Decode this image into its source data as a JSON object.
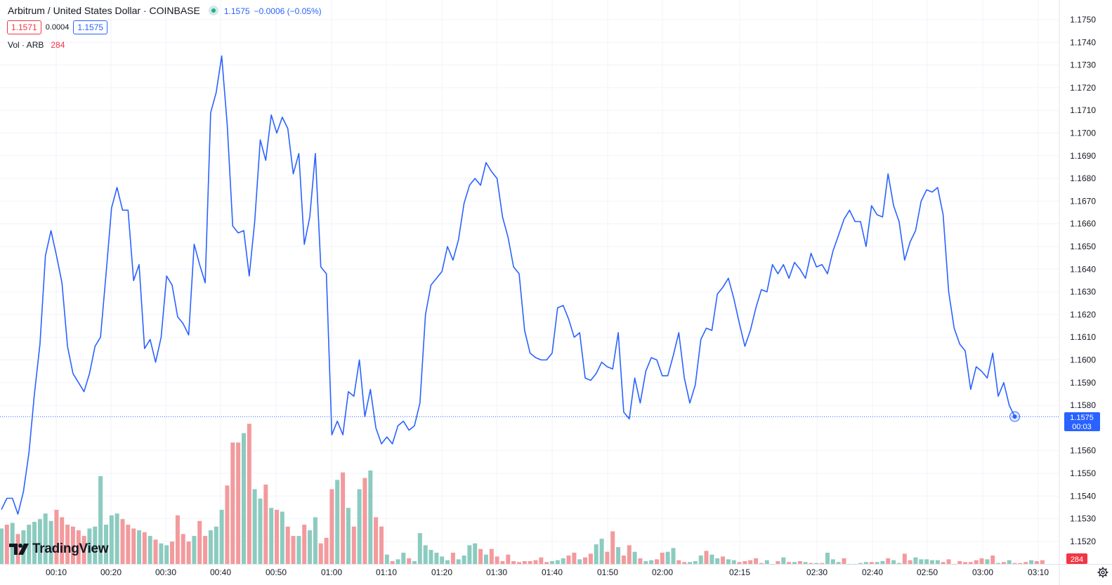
{
  "header": {
    "title": "Arbitrum / United States Dollar · COINBASE",
    "last_price": "1.1575",
    "change": "−0.0006 (−0.05%)",
    "bid": "1.1571",
    "spread": "0.0004",
    "ask": "1.1575"
  },
  "volume_legend": {
    "label": "Vol · ARB",
    "value": "284"
  },
  "brand": {
    "name": "TradingView",
    "icon": "tradingview-logo-icon"
  },
  "price_label": {
    "price": "1.1575",
    "countdown": "00:03"
  },
  "volume_label": "284",
  "colors": {
    "line": "#2962ff",
    "vol_up": "#8ccbbf",
    "vol_down": "#f29a9d",
    "label_blue": "#2962ff",
    "label_red": "#f23645",
    "grid": "#f0f3fa"
  },
  "chart_data": {
    "type": "line",
    "title": "Arbitrum / United States Dollar · COINBASE",
    "xlabel": "",
    "ylabel": "",
    "ylim": [
      1.1515,
      1.1753
    ],
    "grid": true,
    "y_ticks": [
      "1.1750",
      "1.1740",
      "1.1730",
      "1.1720",
      "1.1710",
      "1.1700",
      "1.1690",
      "1.1680",
      "1.1670",
      "1.1660",
      "1.1650",
      "1.1640",
      "1.1630",
      "1.1620",
      "1.1610",
      "1.1600",
      "1.1590",
      "1.1580",
      "1.1560",
      "1.1550",
      "1.1540",
      "1.1530",
      "1.1520"
    ],
    "x_ticks": [
      "00:10",
      "00:20",
      "00:30",
      "00:40",
      "00:50",
      "01:00",
      "01:10",
      "01:20",
      "01:30",
      "01:40",
      "01:50",
      "02:00",
      "02:15",
      "02:30",
      "02:40",
      "02:50",
      "03:00",
      "03:10"
    ],
    "series": [
      {
        "values": [
          1.1534,
          1.1539,
          1.1539,
          1.1532,
          1.1542,
          1.1559,
          1.1585,
          1.1607,
          1.1646,
          1.1657,
          1.1646,
          1.1634,
          1.1606,
          1.1594,
          1.159,
          1.1586,
          1.1594,
          1.1606,
          1.161,
          1.1638,
          1.1667,
          1.1676,
          1.1666,
          1.1666,
          1.1635,
          1.1642,
          1.1605,
          1.1609,
          1.1599,
          1.161,
          1.1637,
          1.1633,
          1.1619,
          1.1616,
          1.1611,
          1.1651,
          1.1642,
          1.1634,
          1.1709,
          1.1718,
          1.1734,
          1.1704,
          1.1659,
          1.1656,
          1.1657,
          1.1637,
          1.1661,
          1.1697,
          1.1688,
          1.1708,
          1.17,
          1.1707,
          1.1702,
          1.1682,
          1.1691,
          1.1651,
          1.1663,
          1.1691,
          1.1641,
          1.1638,
          1.1567,
          1.1573,
          1.1567,
          1.1586,
          1.1584,
          1.16,
          1.1575,
          1.1587,
          1.157,
          1.1563,
          1.1566,
          1.1563,
          1.1571,
          1.1573,
          1.1569,
          1.1571,
          1.1581,
          1.162,
          1.1633,
          1.1636,
          1.1639,
          1.165,
          1.1644,
          1.1653,
          1.1669,
          1.1677,
          1.168,
          1.1677,
          1.1687,
          1.1683,
          1.168,
          1.1663,
          1.1654,
          1.1641,
          1.1638,
          1.1613,
          1.1603,
          1.1601,
          1.16,
          1.16,
          1.1603,
          1.1623,
          1.1624,
          1.1618,
          1.161,
          1.1612,
          1.1592,
          1.1591,
          1.1594,
          1.1599,
          1.1597,
          1.1596,
          1.1612,
          1.1577,
          1.1574,
          1.1592,
          1.1581,
          1.1595,
          1.1601,
          1.16,
          1.1593,
          1.1593,
          1.1602,
          1.1612,
          1.1592,
          1.1581,
          1.1589,
          1.1609,
          1.1614,
          1.1613,
          1.1629,
          1.1632,
          1.1636,
          1.1627,
          1.1616,
          1.1606,
          1.1613,
          1.1623,
          1.1631,
          1.163,
          1.1642,
          1.1638,
          1.1642,
          1.1636,
          1.1643,
          1.164,
          1.1636,
          1.1647,
          1.1641,
          1.1642,
          1.1638,
          1.1648,
          1.1655,
          1.1662,
          1.1666,
          1.1661,
          1.1661,
          1.165,
          1.1668,
          1.1664,
          1.1663,
          1.1682,
          1.1668,
          1.1661,
          1.1644,
          1.1652,
          1.1657,
          1.167,
          1.1675,
          1.1674,
          1.1676,
          1.1664,
          1.163,
          1.1614,
          1.1607,
          1.1604,
          1.1587,
          1.1597,
          1.1595,
          1.1592,
          1.1603,
          1.1584,
          1.159,
          1.158,
          1.1575
        ]
      }
    ],
    "volume": {
      "values": [
        38,
        42,
        44,
        32,
        36,
        42,
        45,
        48,
        54,
        46,
        58,
        50,
        42,
        40,
        36,
        30,
        38,
        40,
        94,
        42,
        52,
        54,
        48,
        42,
        38,
        36,
        34,
        30,
        26,
        22,
        20,
        24,
        52,
        32,
        24,
        30,
        46,
        30,
        36,
        40,
        58,
        84,
        130,
        130,
        140,
        150,
        80,
        70,
        85,
        60,
        58,
        56,
        40,
        30,
        30,
        42,
        36,
        50,
        22,
        28,
        80,
        90,
        98,
        60,
        40,
        80,
        92,
        100,
        50,
        40,
        10,
        3,
        5,
        12,
        6,
        3,
        33,
        20,
        15,
        12,
        8,
        4,
        12,
        5,
        9,
        20,
        22,
        16,
        10,
        16,
        8,
        3,
        10,
        3,
        2,
        3,
        3,
        4,
        7,
        2,
        3,
        4,
        6,
        9,
        12,
        5,
        7,
        11,
        21,
        27,
        13,
        35,
        18,
        9,
        20,
        13,
        6,
        3,
        4,
        5,
        12,
        13,
        17,
        4,
        2,
        2,
        3,
        9,
        14,
        10,
        6,
        8,
        5,
        4,
        2,
        3,
        4,
        6,
        1,
        4,
        0,
        3,
        7,
        2,
        2,
        3,
        2,
        1,
        1,
        1,
        12,
        5,
        2,
        6,
        0,
        0,
        1,
        2,
        2,
        2,
        3,
        6,
        4,
        1,
        11,
        4,
        7,
        5,
        5,
        4,
        4,
        2,
        5,
        0,
        3,
        2,
        2,
        4,
        6,
        5,
        9,
        1,
        2,
        4,
        1,
        1,
        2,
        4,
        3,
        4
      ],
      "up": [
        1,
        0,
        1,
        0,
        1,
        1,
        1,
        1,
        1,
        1,
        0,
        0,
        0,
        0,
        0,
        0,
        1,
        1,
        1,
        1,
        1,
        1,
        0,
        0,
        0,
        1,
        0,
        1,
        0,
        1,
        1,
        0,
        0,
        0,
        0,
        1,
        0,
        0,
        1,
        1,
        1,
        0,
        0,
        0,
        1,
        0,
        1,
        1,
        0,
        1,
        0,
        1,
        0,
        0,
        1,
        0,
        1,
        1,
        0,
        0,
        0,
        1,
        0,
        1,
        0,
        1,
        0,
        1,
        0,
        0,
        1,
        0,
        1,
        1,
        0,
        1,
        1,
        1,
        1,
        1,
        1,
        1,
        0,
        1,
        1,
        1,
        1,
        0,
        1,
        0,
        0,
        0,
        0,
        0,
        0,
        0,
        0,
        0,
        0,
        0,
        1,
        1,
        1,
        0,
        0,
        1,
        0,
        0,
        1,
        1,
        0,
        0,
        1,
        0,
        0,
        1,
        0,
        1,
        1,
        0,
        0,
        1,
        1,
        0,
        0,
        1,
        1,
        1,
        0,
        1,
        1,
        0,
        1,
        1,
        0,
        0,
        0,
        0,
        0,
        1,
        1,
        0,
        1,
        0,
        1,
        0,
        1,
        0,
        1,
        0,
        1,
        1,
        1,
        0,
        1,
        1,
        1,
        1,
        0,
        1,
        1,
        0,
        1,
        1,
        0,
        0,
        1,
        1,
        1,
        1,
        1,
        0,
        0,
        0,
        0,
        0,
        0,
        0,
        0,
        1,
        0,
        1,
        0,
        1,
        0,
        0,
        0,
        1,
        0,
        0
      ]
    }
  }
}
